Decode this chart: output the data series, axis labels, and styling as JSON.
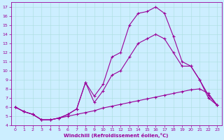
{
  "xlabel": "Windchill (Refroidissement éolien,°C)",
  "background_color": "#cceeff",
  "line_color": "#990099",
  "xlim": [
    -0.5,
    23.5
  ],
  "ylim": [
    4,
    17.5
  ],
  "yticks": [
    4,
    5,
    6,
    7,
    8,
    9,
    10,
    11,
    12,
    13,
    14,
    15,
    16,
    17
  ],
  "xticks": [
    0,
    1,
    2,
    3,
    4,
    5,
    6,
    7,
    8,
    9,
    10,
    11,
    12,
    13,
    14,
    15,
    16,
    17,
    18,
    19,
    20,
    21,
    22,
    23
  ],
  "line1_x": [
    0,
    1,
    2,
    3,
    4,
    5,
    6,
    7,
    8,
    9,
    10,
    11,
    12,
    13,
    14,
    15,
    16,
    17,
    18,
    19,
    20,
    21,
    22,
    23
  ],
  "line1_y": [
    6.0,
    5.5,
    5.2,
    4.6,
    4.6,
    4.8,
    5.0,
    5.2,
    5.4,
    5.6,
    5.9,
    6.1,
    6.3,
    6.5,
    6.7,
    6.9,
    7.1,
    7.3,
    7.5,
    7.7,
    7.9,
    8.0,
    7.5,
    6.2
  ],
  "line2_x": [
    0,
    1,
    2,
    3,
    4,
    5,
    6,
    7,
    8,
    9,
    10,
    11,
    12,
    13,
    14,
    15,
    16,
    17,
    18,
    19,
    20,
    21,
    22,
    23
  ],
  "line2_y": [
    6.0,
    5.5,
    5.2,
    4.6,
    4.6,
    4.8,
    5.2,
    5.8,
    8.7,
    7.2,
    8.5,
    11.5,
    12.0,
    15.0,
    16.3,
    16.5,
    17.0,
    16.3,
    13.8,
    11.0,
    10.5,
    9.0,
    7.0,
    6.2
  ],
  "line3_x": [
    0,
    1,
    2,
    3,
    4,
    5,
    6,
    7,
    8,
    9,
    10,
    11,
    12,
    13,
    14,
    15,
    16,
    17,
    18,
    19,
    20,
    21,
    22,
    23
  ],
  "line3_y": [
    6.0,
    5.5,
    5.2,
    4.6,
    4.6,
    4.8,
    5.2,
    5.8,
    8.7,
    6.5,
    7.8,
    9.5,
    10.0,
    11.5,
    13.0,
    13.5,
    14.0,
    13.5,
    12.0,
    10.5,
    10.5,
    9.0,
    7.3,
    6.2
  ],
  "grid_color": "#aadddd",
  "marker": "+",
  "markersize": 3,
  "linewidth": 0.8,
  "tick_fontsize": 4.5,
  "xlabel_fontsize": 5.0
}
